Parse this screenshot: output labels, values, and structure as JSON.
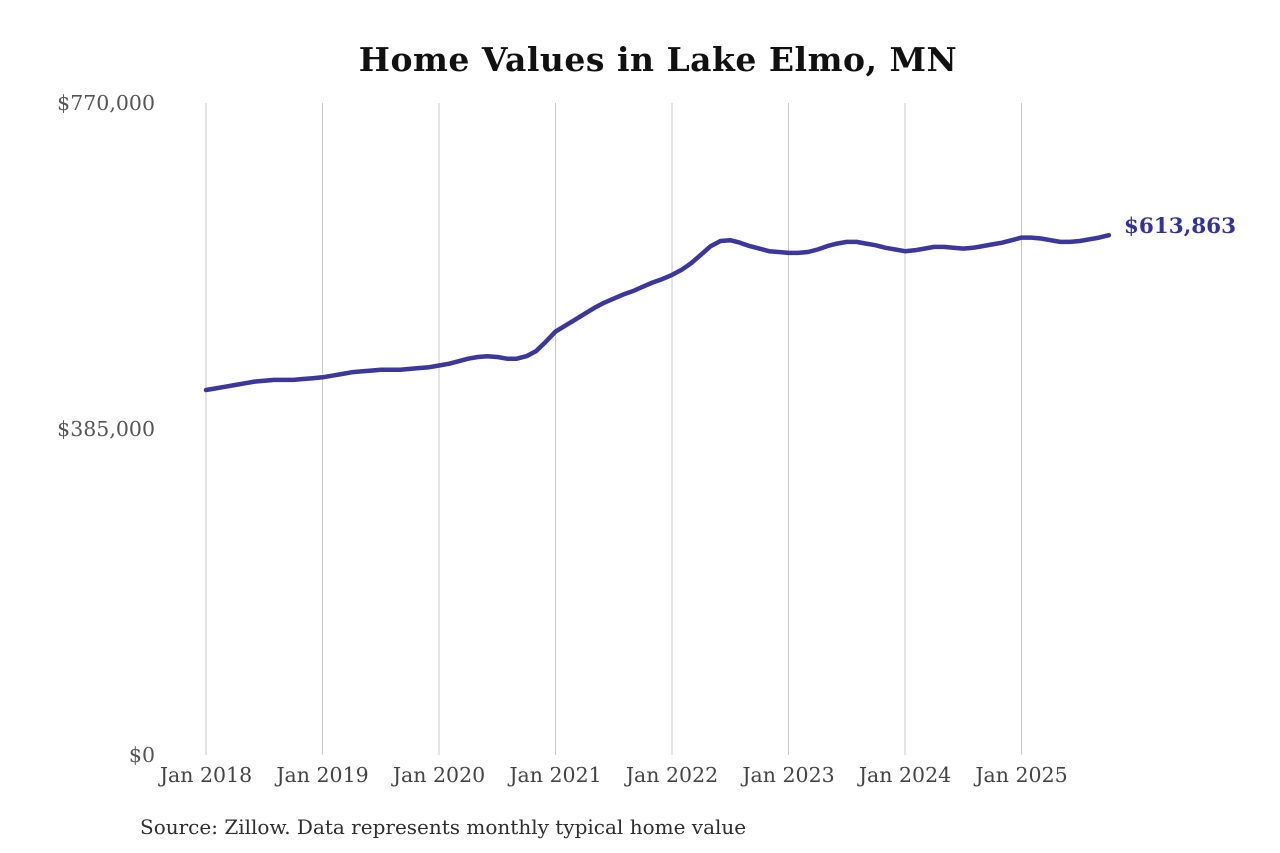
{
  "title": "Home Values in Lake Elmo, MN",
  "source_note": "Source: Zillow. Data represents monthly typical home value",
  "colors": {
    "line": "#3b379c",
    "end_label": "#34329b",
    "grid": "#c9c9c9",
    "y_tick_text": "#555555",
    "x_tick_text": "#444444",
    "title_text": "#111111",
    "source_text": "#2e2e2e",
    "background": "#ffffff"
  },
  "chart_data": {
    "type": "line",
    "title": "Home Values in Lake Elmo, MN",
    "xlabel": "",
    "ylabel": "",
    "x_start": "2018-01",
    "x_interval": "monthly",
    "x_tick_labels": [
      "Jan 2018",
      "Jan 2019",
      "Jan 2020",
      "Jan 2021",
      "Jan 2022",
      "Jan 2023",
      "Jan 2024",
      "Jan 2025"
    ],
    "y_ticks": [
      0,
      385000,
      770000
    ],
    "y_tick_labels": [
      "$0",
      "$385,000",
      "$770,000"
    ],
    "ylim": [
      0,
      770000
    ],
    "grid": "vertical-only",
    "legend": "none",
    "annotation": "$613,863",
    "last_value": 613863,
    "series": [
      {
        "name": "Typical home value",
        "values": [
          431000,
          433000,
          435000,
          437000,
          439000,
          441000,
          442000,
          443000,
          443000,
          443000,
          444000,
          445000,
          446000,
          448000,
          450000,
          452000,
          453000,
          454000,
          455000,
          455000,
          455000,
          456000,
          457000,
          458000,
          460000,
          462000,
          465000,
          468000,
          470000,
          471000,
          470000,
          468000,
          468000,
          471000,
          477000,
          488000,
          500000,
          507000,
          514000,
          521000,
          528000,
          534000,
          539000,
          544000,
          548000,
          553000,
          558000,
          562000,
          567000,
          573000,
          581000,
          591000,
          601000,
          607000,
          608000,
          605000,
          601000,
          598000,
          595000,
          594000,
          593000,
          593000,
          594000,
          597000,
          601000,
          604000,
          606000,
          606000,
          604000,
          602000,
          599000,
          597000,
          595000,
          596000,
          598000,
          600000,
          600000,
          599000,
          598000,
          599000,
          601000,
          603000,
          605000,
          608000,
          611000,
          611000,
          610000,
          608000,
          606000,
          606000,
          607000,
          609000,
          611000,
          613863
        ]
      }
    ]
  }
}
